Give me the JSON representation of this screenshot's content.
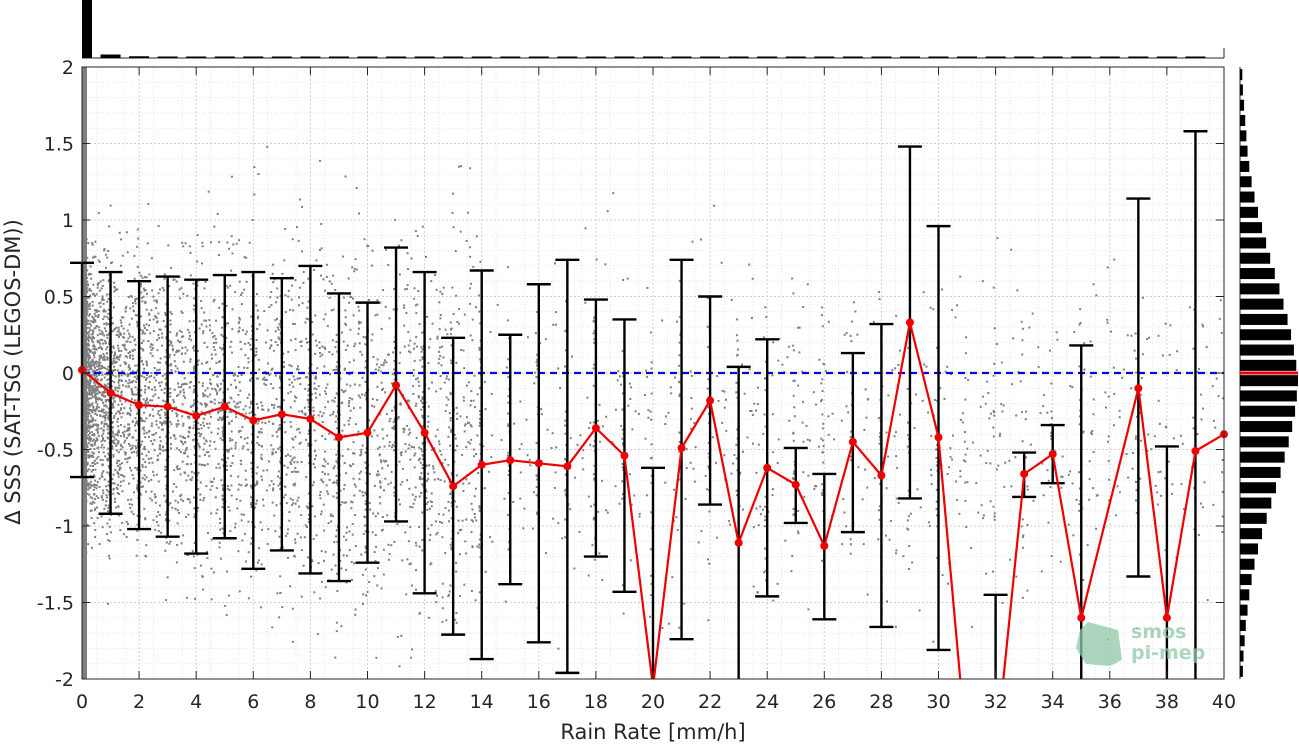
{
  "chart_data": {
    "type": "scatter",
    "xlabel": "Rain Rate [mm/h]",
    "ylabel": "Δ SSS (SAT-TSG (LEGOS-DM))",
    "xlim": [
      0,
      40
    ],
    "ylim": [
      -2,
      2
    ],
    "x_ticks": [
      "0",
      "2",
      "4",
      "6",
      "8",
      "10",
      "12",
      "14",
      "16",
      "18",
      "20",
      "22",
      "24",
      "26",
      "28",
      "30",
      "32",
      "34",
      "36",
      "38",
      "40"
    ],
    "y_ticks": [
      "2",
      "1.5",
      "1",
      "0.5",
      "0",
      "-0.5",
      "-1",
      "-1.5",
      "-2"
    ],
    "grid": true,
    "reference_line": {
      "y": 0,
      "style": "dashed",
      "color": "#0000ee"
    },
    "series": [
      {
        "x": [
          0,
          1,
          2,
          3,
          4,
          5,
          6,
          7,
          8,
          9,
          10,
          11,
          12,
          13,
          14,
          15,
          16,
          17,
          18,
          19,
          20,
          21,
          22,
          23,
          24,
          25,
          26,
          27,
          28,
          29,
          30,
          31,
          32,
          33,
          34,
          35,
          37,
          38,
          39,
          40
        ],
        "mean": [
          0.02,
          -0.13,
          -0.21,
          -0.22,
          -0.28,
          -0.22,
          -0.31,
          -0.27,
          -0.3,
          -0.42,
          -0.39,
          -0.08,
          -0.39,
          -0.74,
          -0.6,
          -0.57,
          -0.59,
          -0.61,
          -0.36,
          -0.54,
          -2.05,
          -0.49,
          -0.18,
          -1.11,
          -0.62,
          -0.73,
          -1.13,
          -0.45,
          -0.67,
          0.33,
          -0.42,
          -2.5,
          -2.5,
          -0.66,
          -0.53,
          -1.6,
          -0.1,
          -1.6,
          -0.51,
          -0.4
        ],
        "upper": [
          0.72,
          0.66,
          0.6,
          0.63,
          0.61,
          0.64,
          0.66,
          0.62,
          0.7,
          0.52,
          0.46,
          0.82,
          0.66,
          0.23,
          0.67,
          0.25,
          0.58,
          0.74,
          0.48,
          0.35,
          -0.62,
          0.74,
          0.5,
          0.04,
          0.22,
          -0.49,
          -0.66,
          0.13,
          0.32,
          1.48,
          0.96,
          null,
          -1.45,
          -0.52,
          -0.34,
          0.18,
          1.14,
          -0.48,
          1.58,
          null
        ],
        "lower": [
          -0.68,
          -0.92,
          -1.02,
          -1.07,
          -1.18,
          -1.08,
          -1.28,
          -1.16,
          -1.31,
          -1.36,
          -1.24,
          -0.97,
          -1.44,
          -1.71,
          -1.87,
          -1.38,
          -1.76,
          -1.96,
          -1.2,
          -1.43,
          -2.6,
          -1.74,
          -0.86,
          -2.6,
          -1.46,
          -0.98,
          -1.61,
          -1.04,
          -1.66,
          -0.82,
          -1.81,
          null,
          -2.6,
          -0.81,
          -0.72,
          -2.6,
          -1.33,
          -2.6,
          -2.6,
          null
        ]
      }
    ],
    "histogram_top": [
      1.0,
      0.06,
      0.03,
      0.02,
      0.015,
      0.01,
      0.008,
      0.006,
      0.006,
      0.005,
      0.005,
      0.004,
      0.004,
      0.003,
      0.003,
      0.003,
      0.003,
      0.002,
      0.002,
      0.002,
      0.002,
      0.002,
      0.002,
      0.002,
      0.002,
      0.002,
      0.002,
      0.002,
      0.002,
      0.002,
      0.002,
      0.002,
      0.002,
      0.002,
      0.002,
      0.002,
      0.002,
      0.002,
      0.002,
      0.002
    ],
    "histogram_right": {
      "bins": [
        1.95,
        1.85,
        1.75,
        1.65,
        1.55,
        1.45,
        1.35,
        1.25,
        1.15,
        1.05,
        0.95,
        0.85,
        0.75,
        0.65,
        0.55,
        0.45,
        0.35,
        0.25,
        0.15,
        0.05,
        -0.05,
        -0.15,
        -0.25,
        -0.35,
        -0.45,
        -0.55,
        -0.65,
        -0.75,
        -0.85,
        -0.95,
        -1.05,
        -1.15,
        -1.25,
        -1.35,
        -1.45,
        -1.55,
        -1.65,
        -1.75,
        -1.85,
        -1.95
      ],
      "counts": [
        0.04,
        0.05,
        0.07,
        0.09,
        0.11,
        0.13,
        0.16,
        0.2,
        0.25,
        0.31,
        0.38,
        0.45,
        0.52,
        0.6,
        0.68,
        0.75,
        0.82,
        0.88,
        0.93,
        0.97,
        1.0,
        0.98,
        0.95,
        0.9,
        0.84,
        0.77,
        0.7,
        0.62,
        0.54,
        0.46,
        0.38,
        0.31,
        0.25,
        0.2,
        0.16,
        0.13,
        0.1,
        0.08,
        0.06,
        0.05
      ],
      "mean_y": 0
    },
    "colors": {
      "scatter": "#7f7f7f",
      "mean_line": "#ee0000",
      "error_bars": "#000000",
      "zero_line": "#0000ee",
      "histogram": "#000000"
    }
  },
  "logo": {
    "line1": "smos",
    "line2": "pi-mep"
  }
}
